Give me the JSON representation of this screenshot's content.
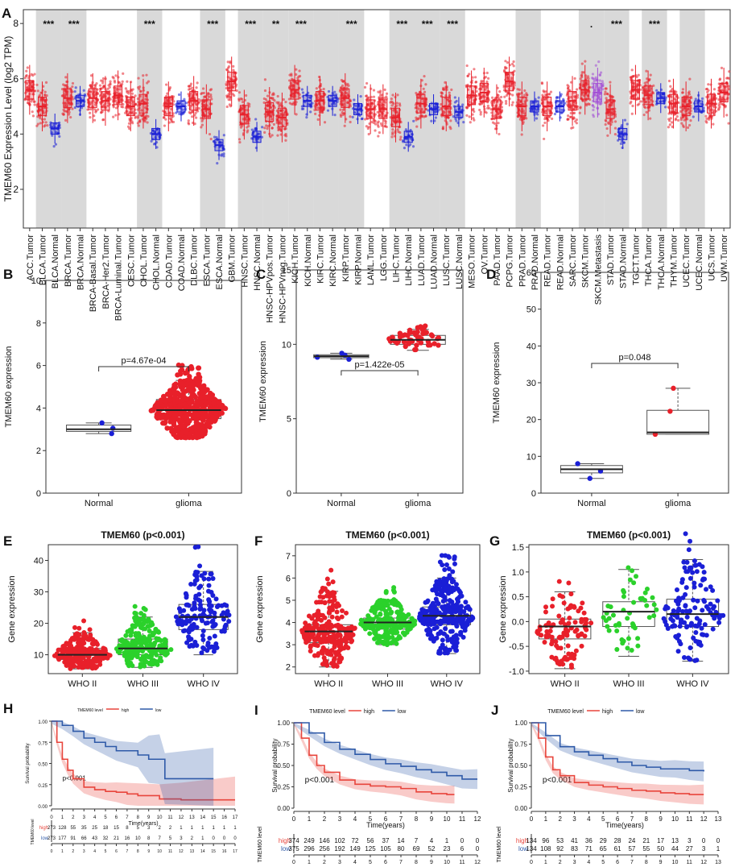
{
  "colors": {
    "tumor": "#e8202a",
    "normal": "#1a1fd6",
    "metastasis": "#a34ed6",
    "shade": "#d9d9d9",
    "km_high": "#e8453c",
    "km_low": "#2f5aa8",
    "green": "#2bd12b",
    "box": "#555555"
  },
  "panels": {
    "A": {
      "letter": "A",
      "ylabel": "TMEM60 Expression Level (log2 TPM)",
      "ymin": 0.6,
      "ymax": 8.5,
      "yticks": [
        2,
        4,
        6,
        8
      ]
    },
    "B": {
      "letter": "B",
      "ylabel": "TMEM60 expression",
      "pval": "p=4.67e-04",
      "ymin": 0,
      "ymax": 10,
      "yticks": [
        0,
        2,
        4,
        6,
        8,
        10
      ],
      "groups": [
        "Normal",
        "glioma"
      ],
      "boxes": [
        {
          "q1": 2.9,
          "med": 3.0,
          "q3": 3.2,
          "lo": 2.8,
          "hi": 3.3,
          "n": 3,
          "color": "normal"
        },
        {
          "q1": 3.5,
          "med": 3.9,
          "q3": 4.4,
          "lo": 2.6,
          "hi": 5.3,
          "n": 520,
          "color": "tumor"
        }
      ]
    },
    "C": {
      "letter": "C",
      "ylabel": "TMEM60 expression",
      "pval": "p=1.422e-05",
      "ymin": 0,
      "ymax": 15,
      "yticks": [
        0,
        5,
        10,
        15
      ],
      "groups": [
        "Normal",
        "glioma"
      ],
      "boxes": [
        {
          "q1": 9.1,
          "med": 9.2,
          "q3": 9.3,
          "lo": 9.0,
          "hi": 9.4,
          "n": 4,
          "color": "normal"
        },
        {
          "q1": 10.0,
          "med": 10.3,
          "q3": 10.6,
          "lo": 9.6,
          "hi": 11.0,
          "n": 50,
          "color": "tumor"
        }
      ]
    },
    "D": {
      "letter": "D",
      "ylabel": "TMEM60 expression",
      "pval": "p=0.048",
      "ymin": 0,
      "ymax": 60,
      "yticks": [
        0,
        10,
        20,
        30,
        40,
        50,
        60
      ],
      "groups": [
        "Normal",
        "glioma"
      ],
      "boxes": [
        {
          "q1": 5.5,
          "med": 6.5,
          "q3": 7.5,
          "lo": 4.0,
          "hi": 8.0,
          "n": 3,
          "color": "normal"
        },
        {
          "q1": 16.0,
          "med": 16.5,
          "q3": 22.5,
          "lo": 16.0,
          "hi": 28.5,
          "n": 3,
          "color": "tumor"
        }
      ]
    },
    "E": {
      "letter": "E",
      "title": "TMEM60 (p<0.001)",
      "ylabel": "Gene expression",
      "ymin": 4,
      "ymax": 45,
      "yticks": [
        10,
        20,
        30,
        40
      ],
      "groups": [
        "WHO II",
        "WHO III",
        "WHO IV"
      ],
      "boxes": [
        {
          "q1": 8.5,
          "med": 10,
          "q3": 12,
          "lo": 5.5,
          "hi": 17,
          "n": 230,
          "color": "tumor"
        },
        {
          "q1": 10,
          "med": 12,
          "q3": 15,
          "lo": 6,
          "hi": 22,
          "n": 260,
          "color": "green"
        },
        {
          "q1": 18,
          "med": 22,
          "q3": 26,
          "lo": 10,
          "hi": 36.5,
          "n": 150,
          "color": "normal"
        }
      ]
    },
    "F": {
      "letter": "F",
      "title": "TMEM60 (p<0.001)",
      "ylabel": "Gene expression",
      "ymin": 1.7,
      "ymax": 7.5,
      "yticks": [
        2,
        3,
        4,
        5,
        6,
        7
      ],
      "groups": [
        "WHO II",
        "WHO III",
        "WHO IV"
      ],
      "boxes": [
        {
          "q1": 3.1,
          "med": 3.6,
          "q3": 3.9,
          "lo": 2.0,
          "hi": 5.4,
          "n": 260,
          "color": "tumor"
        },
        {
          "q1": 3.7,
          "med": 4.0,
          "q3": 4.2,
          "lo": 3.0,
          "hi": 5.0,
          "n": 240,
          "color": "green"
        },
        {
          "q1": 3.9,
          "med": 4.3,
          "q3": 4.7,
          "lo": 2.6,
          "hi": 6.0,
          "n": 420,
          "color": "normal"
        }
      ]
    },
    "G": {
      "letter": "G",
      "title": "TMEM60 (p<0.001)",
      "ylabel": "Gene expression",
      "ymin": -1.05,
      "ymax": 1.55,
      "yticks": [
        -1.0,
        -0.5,
        0.0,
        0.5,
        1.0,
        1.5
      ],
      "groups": [
        "WHO II",
        "WHO III",
        "WHO IV"
      ],
      "boxes": [
        {
          "q1": -0.35,
          "med": -0.1,
          "q3": 0.05,
          "lo": -0.95,
          "hi": 0.6,
          "n": 110,
          "color": "tumor"
        },
        {
          "q1": -0.1,
          "med": 0.2,
          "q3": 0.4,
          "lo": -0.7,
          "hi": 1.05,
          "n": 50,
          "color": "green"
        },
        {
          "q1": -0.1,
          "med": 0.15,
          "q3": 0.45,
          "lo": -0.8,
          "hi": 1.25,
          "n": 130,
          "color": "normal"
        }
      ]
    },
    "H": {
      "letter": "H",
      "legend_title": "TMEM60 level",
      "legend_high": "high",
      "legend_low": "low",
      "ylabel": "Survival probability",
      "xlabel": "Time(years)",
      "pval": "p<0.001",
      "yticks": [
        "0.00",
        "0.25",
        "0.50",
        "0.75",
        "1.00"
      ],
      "xmax": 17,
      "xticks": [
        "0",
        "1",
        "2",
        "3",
        "4",
        "5",
        "6",
        "7",
        "8",
        "9",
        "10",
        "11",
        "12",
        "13",
        "14",
        "15",
        "16",
        "17"
      ],
      "risk_label": "TMEM60 level",
      "risk_high": [
        "273",
        "128",
        "55",
        "35",
        "25",
        "18",
        "15",
        "8",
        "5",
        "3",
        "2",
        "2",
        "1",
        "1",
        "1",
        "1",
        "1",
        "1"
      ],
      "risk_low": [
        "273",
        "177",
        "91",
        "66",
        "43",
        "32",
        "21",
        "16",
        "10",
        "8",
        "7",
        "5",
        "3",
        "2",
        "1",
        "0",
        "0",
        "0"
      ]
    },
    "I": {
      "letter": "I",
      "legend_title": "TMEM60 level",
      "legend_high": "high",
      "legend_low": "low",
      "ylabel": "Survival probability",
      "xlabel": "Time(years)",
      "pval": "p<0.001",
      "yticks": [
        "0.00",
        "0.25",
        "0.50",
        "0.75",
        "1.00"
      ],
      "xmax": 12,
      "xticks": [
        "0",
        "1",
        "2",
        "3",
        "4",
        "5",
        "6",
        "7",
        "8",
        "9",
        "10",
        "11",
        "12"
      ],
      "risk_label": "TMEM60 level",
      "risk_row_high": "high",
      "risk_row_low": "low",
      "risk_high": [
        "374",
        "249",
        "146",
        "102",
        "72",
        "56",
        "37",
        "14",
        "7",
        "4",
        "1",
        "0",
        "0"
      ],
      "risk_low": [
        "375",
        "296",
        "256",
        "192",
        "149",
        "125",
        "105",
        "80",
        "69",
        "52",
        "23",
        "6",
        "0"
      ]
    },
    "J": {
      "letter": "J",
      "legend_title": "TMEM60 level",
      "legend_high": "high",
      "legend_low": "low",
      "ylabel": "Survival probability",
      "xlabel": "Time(years)",
      "pval": "p<0.001",
      "yticks": [
        "0.00",
        "0.25",
        "0.50",
        "0.75",
        "1.00"
      ],
      "xmax": 13,
      "xticks": [
        "0",
        "1",
        "2",
        "3",
        "4",
        "5",
        "6",
        "7",
        "8",
        "9",
        "10",
        "11",
        "12",
        "13"
      ],
      "risk_label": "TMEM60 level",
      "risk_row_high": "high",
      "risk_row_low": "low",
      "risk_high": [
        "134",
        "96",
        "53",
        "41",
        "36",
        "29",
        "28",
        "24",
        "21",
        "17",
        "13",
        "3",
        "0",
        "0"
      ],
      "risk_low": [
        "134",
        "108",
        "92",
        "83",
        "71",
        "65",
        "61",
        "57",
        "55",
        "50",
        "44",
        "27",
        "3",
        "1"
      ]
    }
  },
  "chart_data": [
    {
      "panel": "A",
      "type": "box",
      "title": "",
      "ylabel": "TMEM60 Expression Level (log2 TPM)",
      "ylim": [
        0.6,
        8.5
      ],
      "categories": [
        "ACC.Tumor",
        "BLCA.Tumor",
        "BLCA.Normal",
        "BRCA.Tumor",
        "BRCA.Normal",
        "BRCA-Basal.Tumor",
        "BRCA-Her2.Tumor",
        "BRCA-Luminal.Tumor",
        "CESC.Tumor",
        "CHOL.Tumor",
        "CHOL.Normal",
        "COAD.Tumor",
        "COAD.Normal",
        "DLBC.Tumor",
        "ESCA.Tumor",
        "ESCA.Normal",
        "GBM.Tumor",
        "HNSC.Tumor",
        "HNSC.Normal",
        "HNSC-HPVpos.Tumor",
        "HNSC-HPVneg.Tumor",
        "KICH.Tumor",
        "KICH.Normal",
        "KIRC.Tumor",
        "KIRC.Normal",
        "KIRP.Tumor",
        "KIRP.Normal",
        "LAML.Tumor",
        "LGG.Tumor",
        "LIHC.Tumor",
        "LIHC.Normal",
        "LUAD.Tumor",
        "LUAD.Normal",
        "LUSC.Tumor",
        "LUSC.Normal",
        "MESO.Tumor",
        "OV.Tumor",
        "PAAD.Tumor",
        "PCPG.Tumor",
        "PRAD.Tumor",
        "PRAD.Normal",
        "READ.Tumor",
        "READ.Normal",
        "SARC.Tumor",
        "SKCM.Tumor",
        "SKCM.Metastasis",
        "STAD.Tumor",
        "STAD.Normal",
        "TGCT.Tumor",
        "THCA.Tumor",
        "THCA.Normal",
        "THYM.Tumor",
        "UCEC.Tumor",
        "UCEC.Normal",
        "UCS.Tumor",
        "UVM.Tumor"
      ],
      "medians": [
        5.6,
        5.0,
        4.2,
        5.3,
        5.2,
        5.3,
        5.2,
        5.4,
        5.0,
        5.1,
        4.0,
        5.0,
        5.0,
        5.2,
        4.9,
        3.6,
        5.9,
        4.7,
        3.9,
        4.8,
        4.6,
        5.6,
        5.2,
        5.2,
        5.2,
        5.3,
        4.9,
        4.9,
        4.9,
        4.6,
        3.9,
        5.1,
        4.9,
        5.0,
        4.8,
        5.4,
        5.5,
        4.9,
        5.9,
        5.0,
        5.0,
        5.0,
        5.0,
        5.2,
        5.6,
        5.5,
        4.9,
        4.0,
        5.6,
        5.4,
        5.3,
        5.1,
        5.0,
        5.0,
        5.1,
        5.5
      ],
      "significance": [
        "",
        "***",
        "",
        "***",
        "",
        "",
        "",
        "",
        "",
        "***",
        "",
        "",
        "",
        "",
        "***",
        "",
        "",
        "***",
        "",
        "**",
        "",
        "***",
        "",
        "",
        "",
        "***",
        "",
        "",
        "",
        "***",
        "",
        "***",
        "",
        "***",
        "",
        "",
        "",
        "",
        "",
        "",
        "",
        "",
        "",
        "",
        ".",
        "",
        "***",
        "",
        "",
        "***",
        "",
        "",
        "",
        "",
        "",
        ""
      ]
    },
    {
      "panel": "B",
      "type": "box",
      "categories": [
        "Normal",
        "glioma"
      ],
      "medians": [
        3.0,
        3.9
      ],
      "ylabel": "TMEM60 expression",
      "annotation": "p=4.67e-04"
    },
    {
      "panel": "C",
      "type": "box",
      "categories": [
        "Normal",
        "glioma"
      ],
      "medians": [
        9.2,
        10.3
      ],
      "ylabel": "TMEM60 expression",
      "annotation": "p=1.422e-05"
    },
    {
      "panel": "D",
      "type": "box",
      "categories": [
        "Normal",
        "glioma"
      ],
      "medians": [
        6.5,
        16.5
      ],
      "ylabel": "TMEM60 expression",
      "annotation": "p=0.048"
    },
    {
      "panel": "E",
      "type": "box",
      "title": "TMEM60 (p<0.001)",
      "categories": [
        "WHO II",
        "WHO III",
        "WHO IV"
      ],
      "medians": [
        10,
        12,
        22
      ],
      "ylabel": "Gene expression"
    },
    {
      "panel": "F",
      "type": "box",
      "title": "TMEM60 (p<0.001)",
      "categories": [
        "WHO II",
        "WHO III",
        "WHO IV"
      ],
      "medians": [
        3.6,
        4.0,
        4.3
      ],
      "ylabel": "Gene expression"
    },
    {
      "panel": "G",
      "type": "box",
      "title": "TMEM60 (p<0.001)",
      "categories": [
        "WHO II",
        "WHO III",
        "WHO IV"
      ],
      "medians": [
        -0.1,
        0.2,
        0.15
      ],
      "ylabel": "Gene expression"
    },
    {
      "panel": "H",
      "type": "line",
      "xlabel": "Time(years)",
      "ylabel": "Survival probability",
      "xlim": [
        0,
        17
      ],
      "ylim": [
        0,
        1
      ],
      "series": [
        {
          "name": "high",
          "x": [
            0,
            0.5,
            1,
            1.5,
            2,
            3,
            4,
            5,
            6,
            7,
            8,
            10,
            12,
            17
          ],
          "y": [
            1,
            0.75,
            0.55,
            0.42,
            0.32,
            0.22,
            0.19,
            0.17,
            0.16,
            0.14,
            0.12,
            0.08,
            0.07,
            0.07
          ]
        },
        {
          "name": "low",
          "x": [
            0,
            1,
            2,
            3,
            4,
            5,
            6,
            8,
            9,
            10,
            10.5,
            15
          ],
          "y": [
            1,
            0.95,
            0.88,
            0.8,
            0.75,
            0.7,
            0.65,
            0.6,
            0.55,
            0.55,
            0.32,
            0.32
          ]
        }
      ]
    },
    {
      "panel": "I",
      "type": "line",
      "xlabel": "Time(years)",
      "ylabel": "Survival probability",
      "xlim": [
        0,
        12
      ],
      "ylim": [
        0,
        1
      ],
      "series": [
        {
          "name": "high",
          "x": [
            0,
            0.5,
            1,
            1.5,
            2,
            3,
            4,
            5,
            6,
            7,
            8,
            9,
            10,
            10.5
          ],
          "y": [
            1,
            0.82,
            0.62,
            0.5,
            0.42,
            0.33,
            0.28,
            0.26,
            0.25,
            0.23,
            0.19,
            0.17,
            0.16,
            0.16
          ]
        },
        {
          "name": "low",
          "x": [
            0,
            1,
            2,
            3,
            4,
            5,
            6,
            7,
            8,
            9,
            10,
            11,
            12
          ],
          "y": [
            1,
            0.88,
            0.77,
            0.69,
            0.63,
            0.57,
            0.52,
            0.49,
            0.45,
            0.42,
            0.38,
            0.34,
            0.34
          ]
        }
      ]
    },
    {
      "panel": "J",
      "type": "line",
      "xlabel": "Time(years)",
      "ylabel": "Survival probability",
      "xlim": [
        0,
        13
      ],
      "ylim": [
        0,
        1
      ],
      "series": [
        {
          "name": "high",
          "x": [
            0,
            0.5,
            1,
            1.5,
            2,
            3,
            4,
            5,
            6,
            7,
            8,
            9,
            10,
            11,
            12
          ],
          "y": [
            1,
            0.82,
            0.6,
            0.45,
            0.38,
            0.3,
            0.27,
            0.25,
            0.23,
            0.21,
            0.2,
            0.18,
            0.17,
            0.16,
            0.16
          ]
        },
        {
          "name": "low",
          "x": [
            0,
            1,
            2,
            3,
            4,
            5,
            6,
            7,
            8,
            9,
            10,
            11,
            12
          ],
          "y": [
            1,
            0.85,
            0.72,
            0.66,
            0.62,
            0.58,
            0.54,
            0.5,
            0.48,
            0.46,
            0.46,
            0.44,
            0.43
          ]
        }
      ]
    }
  ]
}
